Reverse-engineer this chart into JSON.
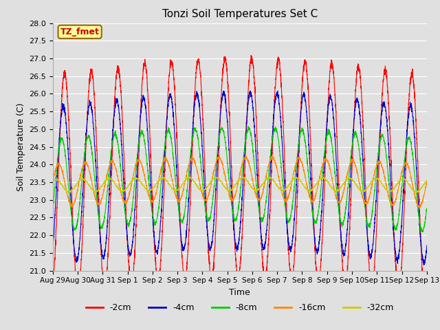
{
  "title": "Tonzi Soil Temperatures Set C",
  "xlabel": "Time",
  "ylabel": "Soil Temperature (C)",
  "ylim": [
    21.0,
    28.0
  ],
  "yticks": [
    21.0,
    21.5,
    22.0,
    22.5,
    23.0,
    23.5,
    24.0,
    24.5,
    25.0,
    25.5,
    26.0,
    26.5,
    27.0,
    27.5,
    28.0
  ],
  "xtick_labels": [
    "Aug 29",
    "Aug 30",
    "Aug 31",
    "Sep 1",
    "Sep 2",
    "Sep 3",
    "Sep 4",
    "Sep 5",
    "Sep 6",
    "Sep 7",
    "Sep 8",
    "Sep 9",
    "Sep 10",
    "Sep 11",
    "Sep 12",
    "Sep 13"
  ],
  "legend_labels": [
    "-2cm",
    "-4cm",
    "-8cm",
    "-16cm",
    "-32cm"
  ],
  "line_colors": [
    "#ff0000",
    "#0000cc",
    "#00cc00",
    "#ff8800",
    "#cccc00"
  ],
  "annotation_text": "TZ_fmet",
  "annotation_bg": "#ffff99",
  "annotation_border": "#996600",
  "bg_color": "#e0e0e0",
  "n_points": 3360,
  "duration_days": 14,
  "base_temp": 23.4,
  "amplitude_2cm": 3.1,
  "amplitude_4cm": 2.2,
  "amplitude_8cm": 1.3,
  "amplitude_16cm": 0.6,
  "amplitude_32cm": 0.18,
  "phase_2cm": -1.2,
  "phase_4cm": -0.9,
  "phase_8cm": -0.5,
  "phase_16cm": 0.2,
  "phase_32cm": 0.9,
  "slow_amp": 0.5,
  "slow_amp_decay_4": 0.85,
  "slow_amp_decay_8": 0.65,
  "slow_amp_decay_16": 0.4,
  "slow_amp_decay_32": 0.1
}
